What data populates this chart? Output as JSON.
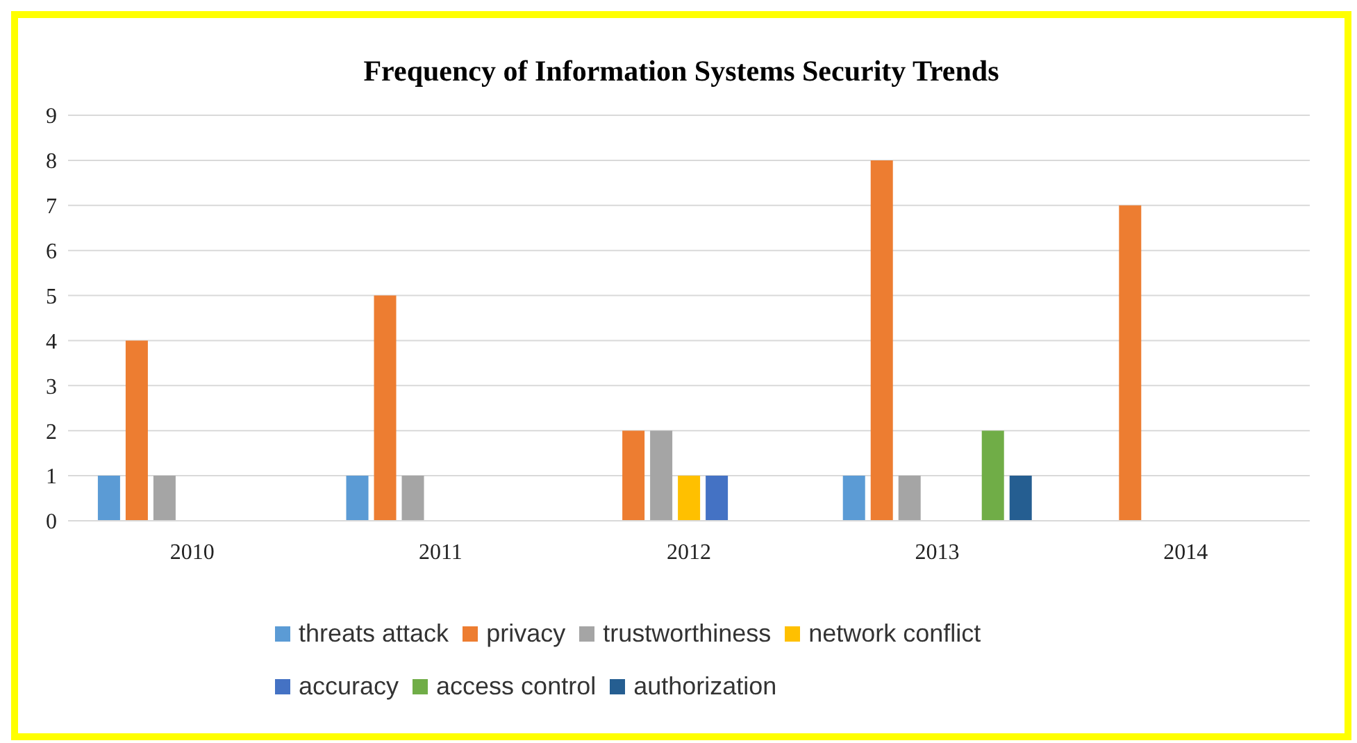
{
  "chart_data": {
    "type": "bar",
    "title": "Frequency of Information Systems Security Trends",
    "categories": [
      "2010",
      "2011",
      "2012",
      "2013",
      "2014"
    ],
    "series": [
      {
        "name": "threats attack",
        "color": "#5b9bd5",
        "values": [
          1,
          1,
          0,
          1,
          0
        ]
      },
      {
        "name": "privacy",
        "color": "#ed7d31",
        "values": [
          4,
          5,
          2,
          8,
          7
        ]
      },
      {
        "name": "trustworthiness",
        "color": "#a5a5a5",
        "values": [
          1,
          1,
          2,
          1,
          0
        ]
      },
      {
        "name": "network conflict",
        "color": "#ffc000",
        "values": [
          0,
          0,
          1,
          0,
          0
        ]
      },
      {
        "name": "accuracy",
        "color": "#4472c4",
        "values": [
          0,
          0,
          1,
          0,
          0
        ]
      },
      {
        "name": "access control",
        "color": "#70ad47",
        "values": [
          0,
          0,
          0,
          2,
          0
        ]
      },
      {
        "name": "authorization",
        "color": "#255e91",
        "values": [
          0,
          0,
          0,
          1,
          0
        ]
      }
    ],
    "ylim": [
      0,
      9
    ],
    "yticks": [
      0,
      1,
      2,
      3,
      4,
      5,
      6,
      7,
      8,
      9
    ],
    "grid": "y",
    "legend": "bottom"
  }
}
